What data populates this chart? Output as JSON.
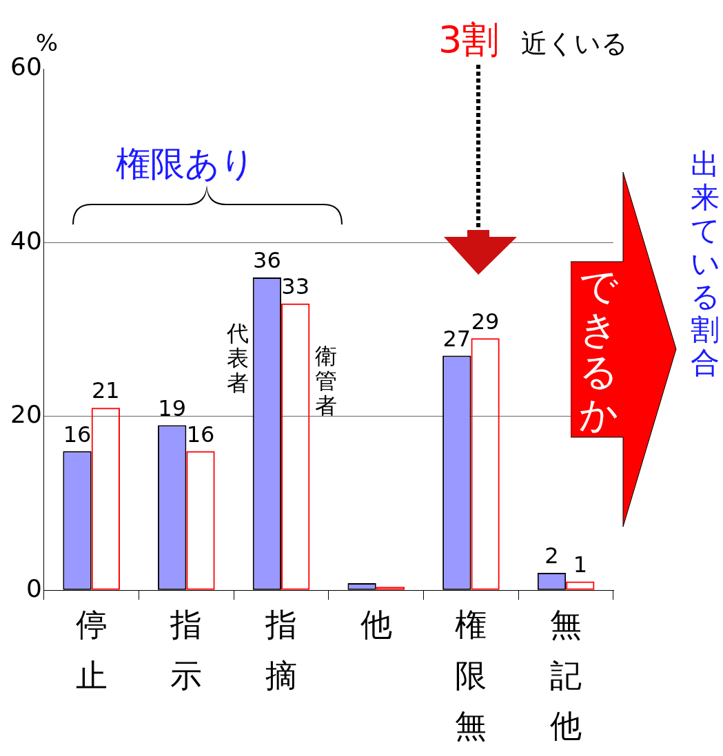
{
  "chart_data": {
    "type": "bar",
    "ylabel": "%",
    "categories": [
      "停止",
      "指示",
      "指摘",
      "他",
      "権限無",
      "無記他"
    ],
    "series": [
      {
        "name": "代表者",
        "color": "#9999ff",
        "values": [
          16,
          19,
          36,
          0.8,
          27,
          2
        ],
        "value_labels": [
          "16",
          "19",
          "36",
          null,
          "27",
          "2"
        ]
      },
      {
        "name": "衛管者",
        "color": "#ff0000",
        "values": [
          21,
          16,
          33,
          0.4,
          29,
          1
        ],
        "value_labels": [
          "21",
          "16",
          "33",
          null,
          "29",
          "1"
        ]
      }
    ],
    "ylim": [
      0,
      60
    ],
    "yticks": [
      0,
      20,
      40,
      60
    ],
    "grid": "y",
    "legend": false,
    "annotations": [
      "権限あり",
      "3割",
      "近くいる",
      "できるか",
      "出来ている割合"
    ]
  }
}
